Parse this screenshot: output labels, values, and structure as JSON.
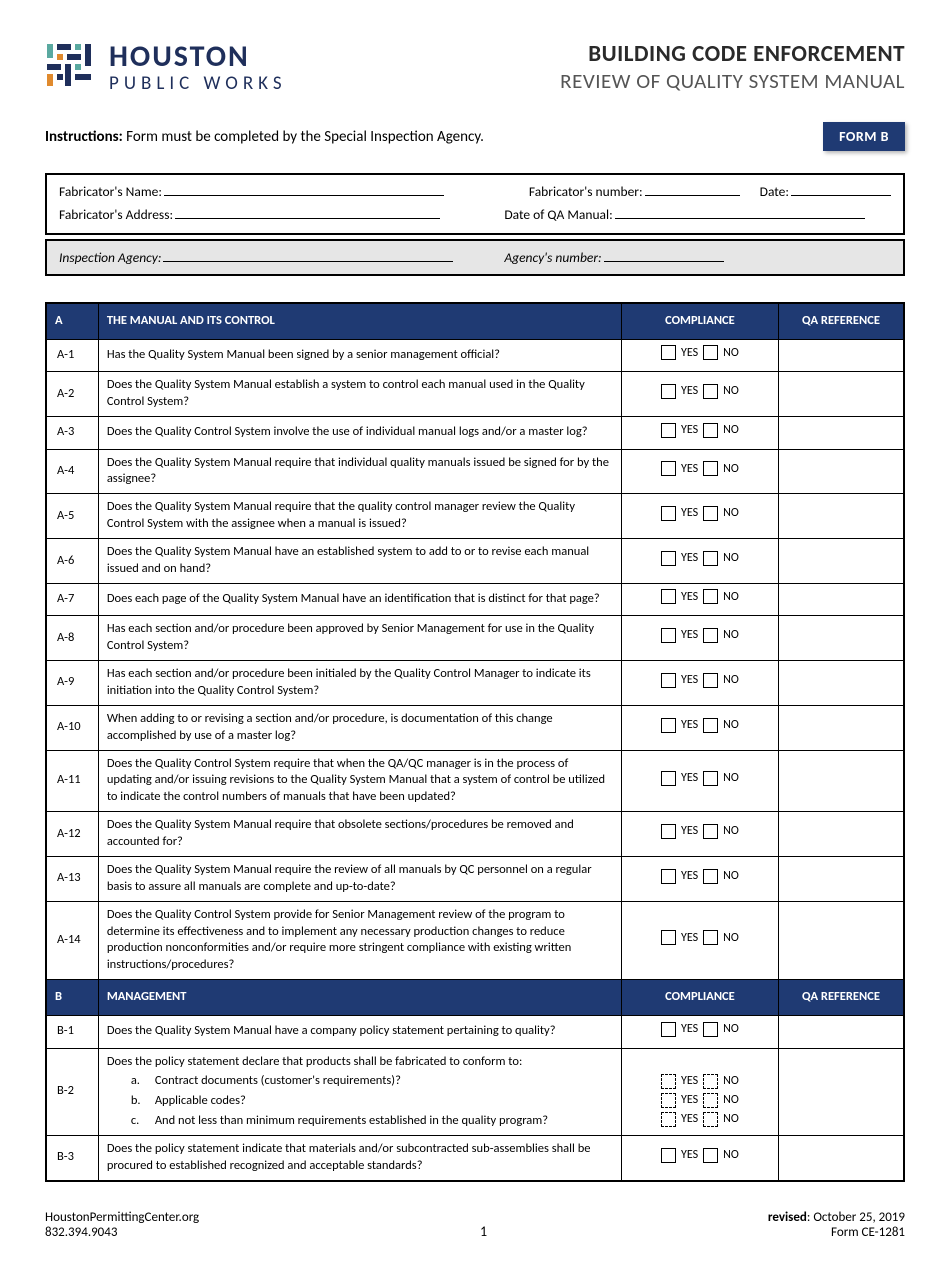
{
  "colors": {
    "navy": "#1f3a73",
    "logo_navy": "#1f2f5b",
    "logo_orange": "#e08a2e",
    "logo_teal": "#5aa9a0",
    "gray_bg": "#e6e6e6"
  },
  "logo": {
    "line1": "HOUSTON",
    "line2": "PUBLIC WORKS"
  },
  "title": {
    "line1": "BUILDING CODE ENFORCEMENT",
    "line2": "REVIEW OF QUALITY SYSTEM MANUAL"
  },
  "instructions": {
    "label": "Instructions:",
    "text": "Form must be completed by the Special Inspection Agency."
  },
  "form_badge": "FORM B",
  "info_fields": {
    "fab_name": "Fabricator's Name:",
    "fab_number": "Fabricator's number:",
    "date": "Date:",
    "fab_address": "Fabricator's Address:",
    "qa_date": "Date of QA Manual:",
    "agency": "Inspection Agency:",
    "agency_number": "Agency's number:"
  },
  "headers": {
    "compliance": "COMPLIANCE",
    "qa_ref": "QA REFERENCE"
  },
  "yes": "YES",
  "no": "NO",
  "sections": [
    {
      "code": "A",
      "title": "THE MANUAL AND ITS CONTROL",
      "rows": [
        {
          "code": "A-1",
          "q": "Has the Quality System Manual been signed by a senior management official?"
        },
        {
          "code": "A-2",
          "q": "Does the Quality System Manual establish a system to control each manual used in the Quality Control System?"
        },
        {
          "code": "A-3",
          "q": "Does the Quality Control System involve the use of individual manual logs and/or a master log?"
        },
        {
          "code": "A-4",
          "q": "Does the Quality System Manual require that individual quality manuals issued be signed for by the assignee?"
        },
        {
          "code": "A-5",
          "q": "Does the Quality System Manual require that the quality control manager review the Quality Control System with the assignee when a manual is issued?"
        },
        {
          "code": "A-6",
          "q": "Does the Quality System Manual have an established system to add to or to revise each manual issued and on hand?"
        },
        {
          "code": "A-7",
          "q": "Does each page of the Quality System Manual have an identification that is distinct for that page?"
        },
        {
          "code": "A-8",
          "q": "Has each section and/or procedure been approved by Senior Management for use in the Quality Control System?"
        },
        {
          "code": "A-9",
          "q": "Has each section and/or procedure been initialed by the Quality Control Manager to indicate its initiation into the Quality Control System?"
        },
        {
          "code": "A-10",
          "q": "When adding to or revising a section and/or procedure, is documentation of this change accomplished by use of a master log?"
        },
        {
          "code": "A-11",
          "q": "Does the Quality Control System require that when the QA/QC manager is in the process of updating and/or issuing revisions to the Quality System Manual that a system of control be utilized to indicate the control numbers of manuals that have been updated?"
        },
        {
          "code": "A-12",
          "q": "Does the Quality System Manual require that obsolete sections/procedures be removed and accounted for?"
        },
        {
          "code": "A-13",
          "q": "Does the Quality System Manual require the review of all manuals by QC personnel on a regular basis to assure all manuals are complete and up-to-date?"
        },
        {
          "code": "A-14",
          "q": "Does the Quality Control System provide for Senior Management review of the program to determine its effectiveness and to implement any necessary production changes to reduce production nonconformities and/or require more stringent compliance with existing written instructions/procedures?"
        }
      ]
    },
    {
      "code": "B",
      "title": "MANAGEMENT",
      "rows": [
        {
          "code": "B-1",
          "q": "Does the Quality System Manual have a company policy statement pertaining to quality?"
        },
        {
          "code": "B-2",
          "q": "Does the policy statement declare that products shall be fabricated to conform to:",
          "subs": [
            {
              "letter": "a.",
              "text": "Contract documents (customer's requirements)?"
            },
            {
              "letter": "b.",
              "text": "Applicable codes?"
            },
            {
              "letter": "c.",
              "text": "And not less than minimum requirements established in the quality program?"
            }
          ]
        },
        {
          "code": "B-3",
          "q": "Does the policy statement indicate that materials and/or subcontracted sub-assemblies shall be procured to established recognized and acceptable standards?"
        }
      ]
    }
  ],
  "footer": {
    "url": "HoustonPermittingCenter.org",
    "phone": "832.394.9043",
    "page": "1",
    "revised_label": "revised",
    "revised_date": "October 25, 2019",
    "form_no": "Form CE-1281"
  }
}
